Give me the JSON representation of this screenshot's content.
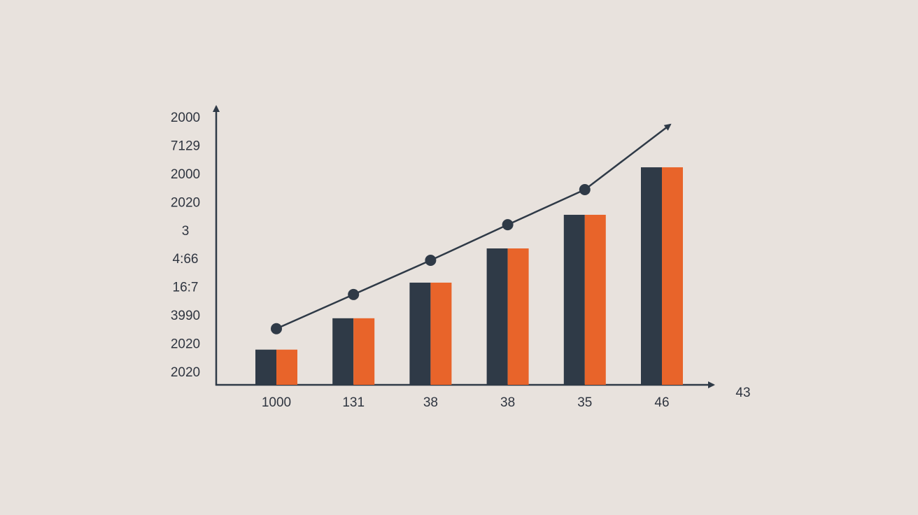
{
  "chart_data": {
    "type": "bar",
    "categories": [
      "1000",
      "131",
      "38",
      "38",
      "35",
      "46"
    ],
    "x_label": "43",
    "series": [
      {
        "color": "#2f3a47",
        "values": [
          0.82,
          1.93,
          3.19,
          4.4,
          5.59,
          7.27
        ]
      },
      {
        "color": "#e8642a",
        "values": [
          0.82,
          1.93,
          3.19,
          4.4,
          5.59,
          7.27
        ]
      }
    ],
    "line": {
      "type": "line",
      "color": "#2f3a47",
      "values": [
        1.56,
        2.77,
        3.98,
        5.24,
        6.48,
        null
      ]
    },
    "ylim": [
      -0.5,
      9.5
    ],
    "yticks": [
      {
        "value": 0,
        "label": "2020"
      },
      {
        "value": 1,
        "label": "2020"
      },
      {
        "value": 2,
        "label": "3990"
      },
      {
        "value": 3,
        "label": "16:7"
      },
      {
        "value": 4,
        "label": "4:66"
      },
      {
        "value": 5,
        "label": "3"
      },
      {
        "value": 6,
        "label": "2020"
      },
      {
        "value": 7,
        "label": "2000"
      },
      {
        "value": 8,
        "label": "7129"
      },
      {
        "value": 9,
        "label": "2000"
      }
    ]
  }
}
